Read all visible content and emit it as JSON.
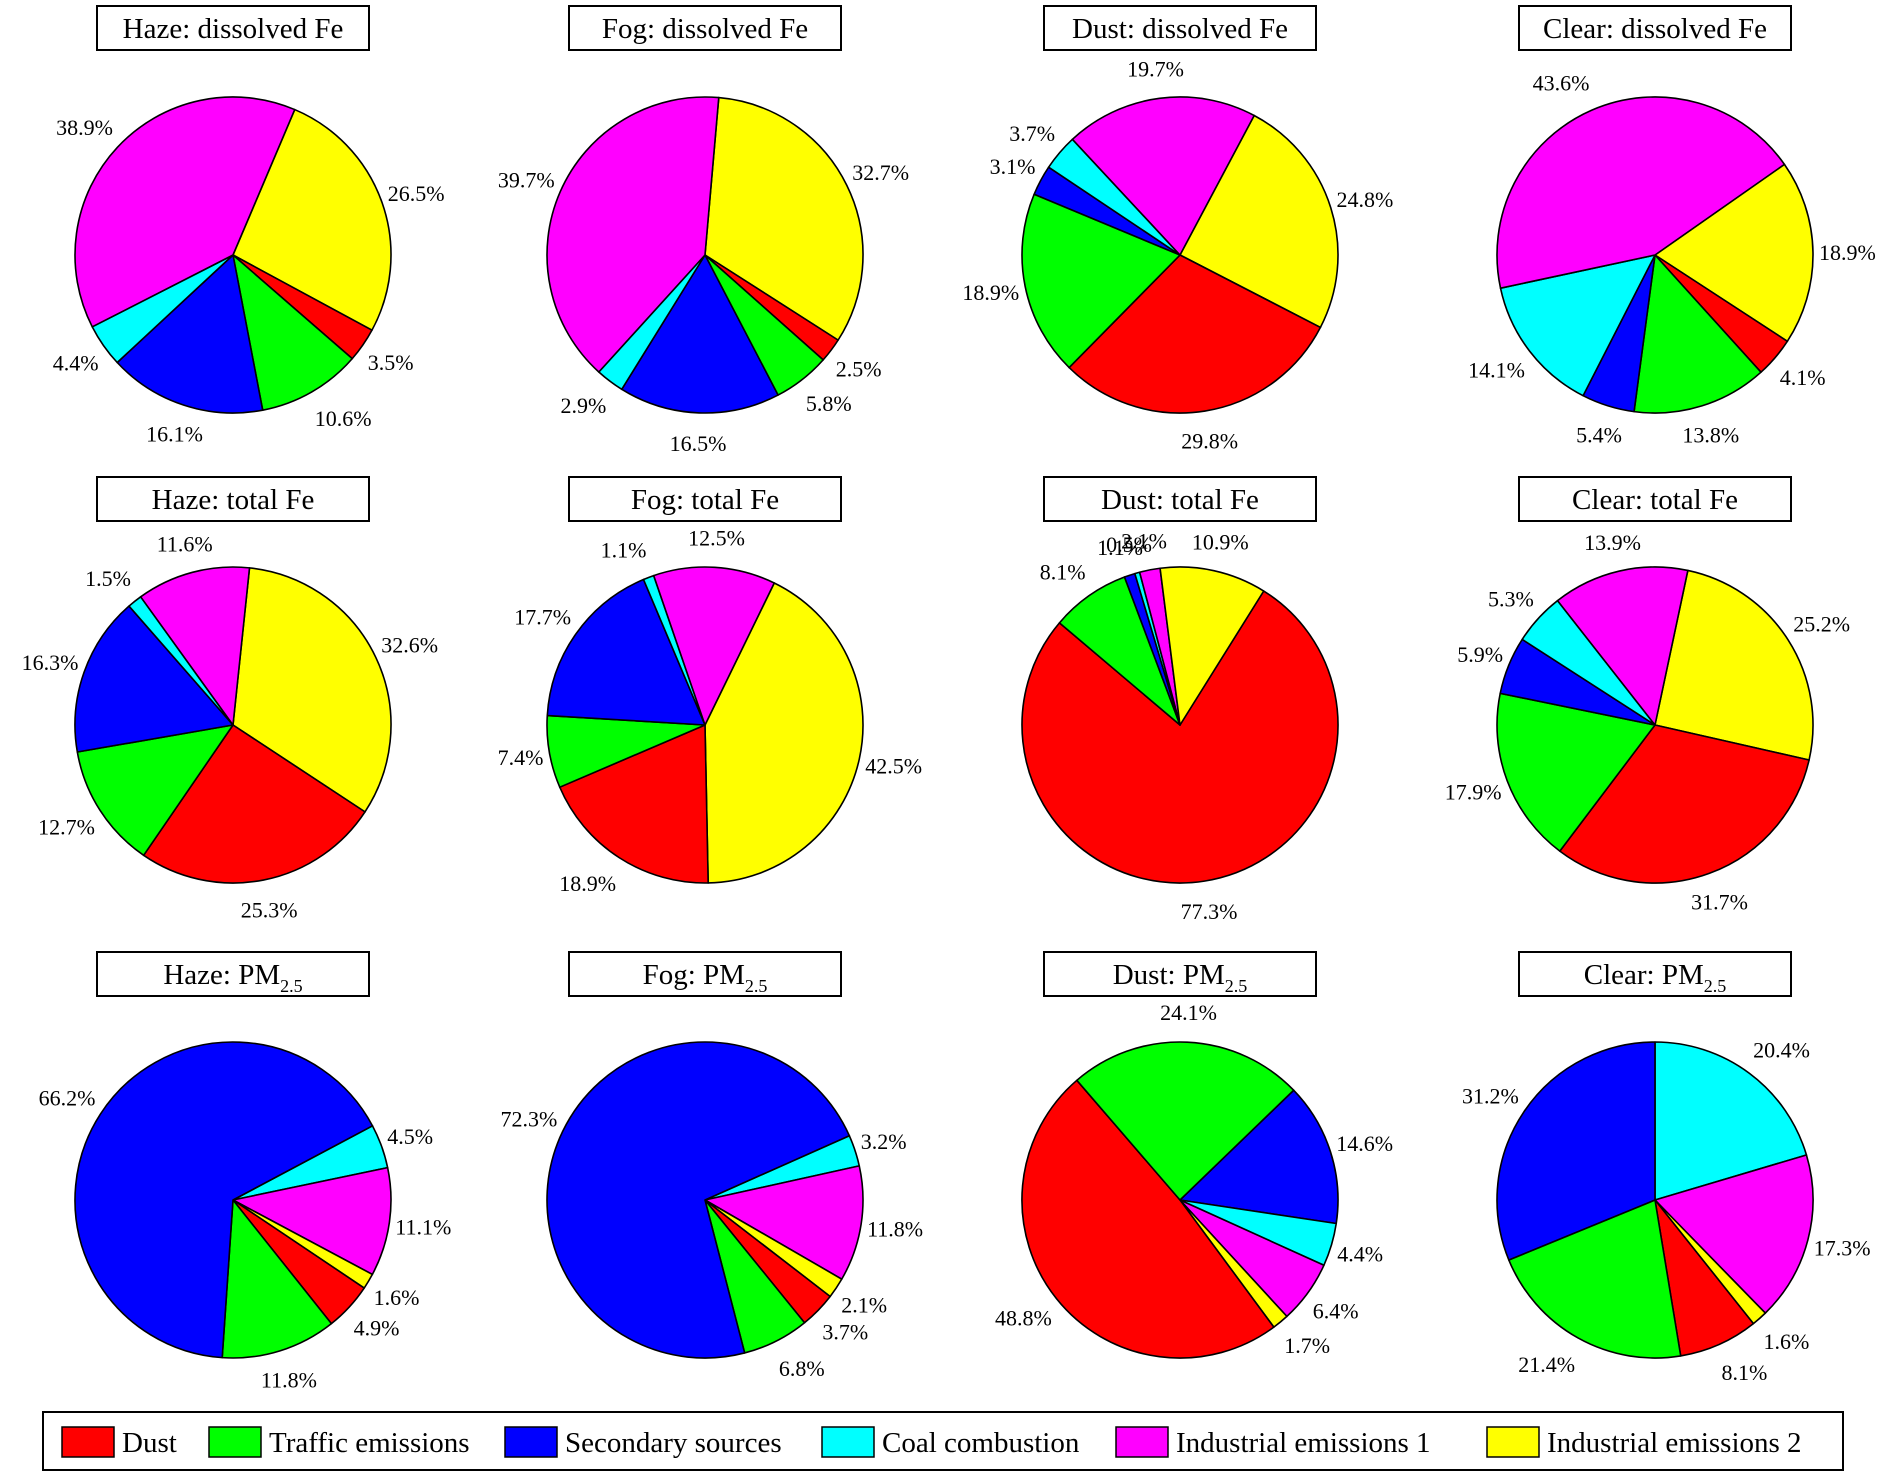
{
  "colors": {
    "Dust": "#ff0000",
    "Traffic emissions": "#00ff00",
    "Secondary sources": "#0000ff",
    "Coal combustion": "#00ffff",
    "Industrial emissions 1": "#ff00ff",
    "Industrial emissions 2": "#ffff00"
  },
  "legend": [
    "Dust",
    "Traffic emissions",
    "Secondary sources",
    "Coal combustion",
    "Industrial emissions 1",
    "Industrial emissions 2"
  ],
  "chart_data": [
    {
      "type": "pie",
      "title": "Haze: dissolved Fe",
      "title_sub": "",
      "slices": [
        {
          "label": "Industrial emissions 2",
          "value": 26.5,
          "text": "26.5%"
        },
        {
          "label": "Dust",
          "value": 3.5,
          "text": "3.5%"
        },
        {
          "label": "Traffic emissions",
          "value": 10.6,
          "text": "10.6%"
        },
        {
          "label": "Secondary sources",
          "value": 16.1,
          "text": "16.1%"
        },
        {
          "label": "Coal combustion",
          "value": 4.4,
          "text": "4.4%"
        },
        {
          "label": "Industrial emissions 1",
          "value": 38.9,
          "text": "38.9%"
        }
      ]
    },
    {
      "type": "pie",
      "title": "Fog: dissolved Fe",
      "title_sub": "",
      "slices": [
        {
          "label": "Industrial emissions 2",
          "value": 32.7,
          "text": "32.7%"
        },
        {
          "label": "Dust",
          "value": 2.5,
          "text": "2.5%"
        },
        {
          "label": "Traffic emissions",
          "value": 5.8,
          "text": "5.8%"
        },
        {
          "label": "Secondary sources",
          "value": 16.5,
          "text": "16.5%"
        },
        {
          "label": "Coal combustion",
          "value": 2.9,
          "text": "2.9%"
        },
        {
          "label": "Industrial emissions 1",
          "value": 39.7,
          "text": "39.7%"
        }
      ]
    },
    {
      "type": "pie",
      "title": "Dust: dissolved Fe",
      "title_sub": "",
      "slices": [
        {
          "label": "Industrial emissions 2",
          "value": 24.8,
          "text": "24.8%"
        },
        {
          "label": "Dust",
          "value": 29.8,
          "text": "29.8%"
        },
        {
          "label": "Traffic emissions",
          "value": 18.9,
          "text": "18.9%"
        },
        {
          "label": "Secondary sources",
          "value": 3.1,
          "text": "3.1%"
        },
        {
          "label": "Coal combustion",
          "value": 3.7,
          "text": "3.7%"
        },
        {
          "label": "Industrial emissions 1",
          "value": 19.7,
          "text": "19.7%"
        }
      ]
    },
    {
      "type": "pie",
      "title": "Clear: dissolved Fe",
      "title_sub": "",
      "slices": [
        {
          "label": "Industrial emissions 2",
          "value": 18.9,
          "text": "18.9%"
        },
        {
          "label": "Dust",
          "value": 4.1,
          "text": "4.1%"
        },
        {
          "label": "Traffic emissions",
          "value": 13.8,
          "text": "13.8%"
        },
        {
          "label": "Secondary sources",
          "value": 5.4,
          "text": "5.4%"
        },
        {
          "label": "Coal combustion",
          "value": 14.1,
          "text": "14.1%"
        },
        {
          "label": "Industrial emissions 1",
          "value": 43.6,
          "text": "43.6%"
        }
      ]
    },
    {
      "type": "pie",
      "title": "Haze: total Fe",
      "title_sub": "",
      "slices": [
        {
          "label": "Industrial emissions 2",
          "value": 32.6,
          "text": "32.6%"
        },
        {
          "label": "Dust",
          "value": 25.3,
          "text": "25.3%"
        },
        {
          "label": "Traffic emissions",
          "value": 12.7,
          "text": "12.7%"
        },
        {
          "label": "Secondary sources",
          "value": 16.3,
          "text": "16.3%"
        },
        {
          "label": "Coal combustion",
          "value": 1.5,
          "text": "1.5%"
        },
        {
          "label": "Industrial emissions 1",
          "value": 11.6,
          "text": "11.6%"
        }
      ]
    },
    {
      "type": "pie",
      "title": "Fog: total Fe",
      "title_sub": "",
      "slices": [
        {
          "label": "Industrial emissions 2",
          "value": 42.5,
          "text": "42.5%"
        },
        {
          "label": "Dust",
          "value": 18.9,
          "text": "18.9%"
        },
        {
          "label": "Traffic emissions",
          "value": 7.4,
          "text": "7.4%"
        },
        {
          "label": "Secondary sources",
          "value": 17.7,
          "text": "17.7%"
        },
        {
          "label": "Coal combustion",
          "value": 1.1,
          "text": "1.1%"
        },
        {
          "label": "Industrial emissions 1",
          "value": 12.5,
          "text": "12.5%"
        }
      ]
    },
    {
      "type": "pie",
      "title": "Dust: total Fe",
      "title_sub": "",
      "slices": [
        {
          "label": "Dust",
          "value": 77.3,
          "text": "77.3%"
        },
        {
          "label": "Traffic emissions",
          "value": 8.1,
          "text": "8.1%"
        },
        {
          "label": "Secondary sources",
          "value": 1.1,
          "text": "1.1%"
        },
        {
          "label": "Coal combustion",
          "value": 0.5,
          "text": "0.5%"
        },
        {
          "label": "Industrial emissions 1",
          "value": 2.1,
          "text": "2.1%"
        },
        {
          "label": "Industrial emissions 2",
          "value": 10.9,
          "text": "10.9%"
        }
      ]
    },
    {
      "type": "pie",
      "title": "Clear: total Fe",
      "title_sub": "",
      "slices": [
        {
          "label": "Industrial emissions 2",
          "value": 25.2,
          "text": "25.2%"
        },
        {
          "label": "Dust",
          "value": 31.7,
          "text": "31.7%"
        },
        {
          "label": "Traffic emissions",
          "value": 17.9,
          "text": "17.9%"
        },
        {
          "label": "Secondary sources",
          "value": 5.9,
          "text": "5.9%"
        },
        {
          "label": "Coal combustion",
          "value": 5.3,
          "text": "5.3%"
        },
        {
          "label": "Industrial emissions 1",
          "value": 13.9,
          "text": "13.9%"
        }
      ]
    },
    {
      "type": "pie",
      "title": "Haze: PM",
      "title_sub": "2.5",
      "slices": [
        {
          "label": "Coal combustion",
          "value": 4.5,
          "text": "4.5%"
        },
        {
          "label": "Industrial emissions 1",
          "value": 11.1,
          "text": "11.1%"
        },
        {
          "label": "Industrial emissions 2",
          "value": 1.6,
          "text": "1.6%"
        },
        {
          "label": "Dust",
          "value": 4.9,
          "text": "4.9%"
        },
        {
          "label": "Traffic emissions",
          "value": 11.8,
          "text": "11.8%"
        },
        {
          "label": "Secondary sources",
          "value": 66.2,
          "text": "66.2%"
        }
      ]
    },
    {
      "type": "pie",
      "title": "Fog: PM",
      "title_sub": "2.5",
      "slices": [
        {
          "label": "Coal combustion",
          "value": 3.2,
          "text": "3.2%"
        },
        {
          "label": "Industrial emissions 1",
          "value": 11.8,
          "text": "11.8%"
        },
        {
          "label": "Industrial emissions 2",
          "value": 2.1,
          "text": "2.1%"
        },
        {
          "label": "Dust",
          "value": 3.7,
          "text": "3.7%"
        },
        {
          "label": "Traffic emissions",
          "value": 6.8,
          "text": "6.8%"
        },
        {
          "label": "Secondary sources",
          "value": 72.3,
          "text": "72.3%"
        }
      ]
    },
    {
      "type": "pie",
      "title": "Dust: PM",
      "title_sub": "2.5",
      "slices": [
        {
          "label": "Secondary sources",
          "value": 14.6,
          "text": "14.6%"
        },
        {
          "label": "Coal combustion",
          "value": 4.4,
          "text": "4.4%"
        },
        {
          "label": "Industrial emissions 1",
          "value": 6.4,
          "text": "6.4%"
        },
        {
          "label": "Industrial emissions 2",
          "value": 1.7,
          "text": "1.7%"
        },
        {
          "label": "Dust",
          "value": 48.8,
          "text": "48.8%"
        },
        {
          "label": "Traffic emissions",
          "value": 24.1,
          "text": "24.1%"
        }
      ]
    },
    {
      "type": "pie",
      "title": "Clear: PM",
      "title_sub": "2.5",
      "slices": [
        {
          "label": "Coal combustion",
          "value": 20.4,
          "text": "20.4%"
        },
        {
          "label": "Industrial emissions 1",
          "value": 17.3,
          "text": "17.3%"
        },
        {
          "label": "Industrial emissions 2",
          "value": 1.6,
          "text": "1.6%"
        },
        {
          "label": "Dust",
          "value": 8.1,
          "text": "8.1%"
        },
        {
          "label": "Traffic emissions",
          "value": 21.4,
          "text": "21.4%"
        },
        {
          "label": "Secondary sources",
          "value": 31.2,
          "text": "31.2%"
        }
      ]
    }
  ]
}
